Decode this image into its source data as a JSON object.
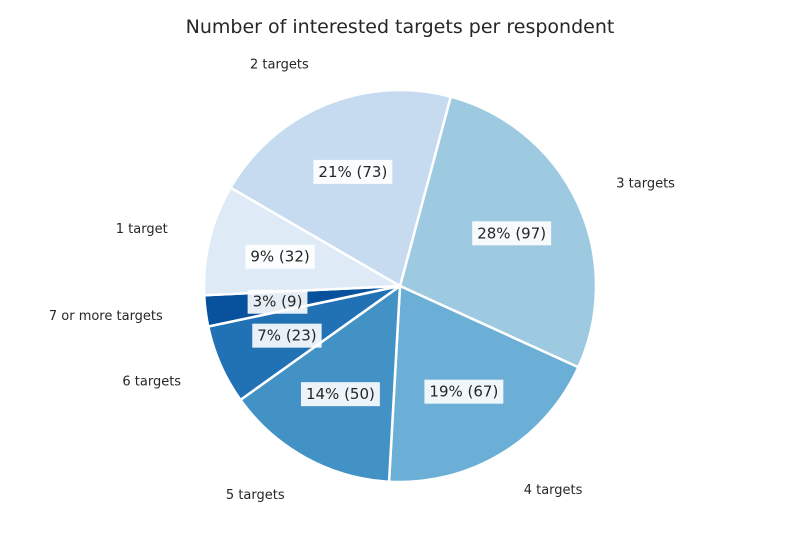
{
  "chart_data": {
    "type": "pie",
    "title": "Number of interested targets per respondent",
    "slices": [
      {
        "label": "3 targets",
        "count": 97,
        "percent_label": "28% (97)",
        "color": "#9ecae1"
      },
      {
        "label": "4 targets",
        "count": 67,
        "percent_label": "19% (67)",
        "color": "#6baed6"
      },
      {
        "label": "5 targets",
        "count": 50,
        "percent_label": "14% (50)",
        "color": "#4292c6"
      },
      {
        "label": "6 targets",
        "count": 23,
        "percent_label": "7% (23)",
        "color": "#2171b5"
      },
      {
        "label": "7 or more targets",
        "count": 9,
        "percent_label": "3% (9)",
        "color": "#08519c"
      },
      {
        "label": "1 target",
        "count": 32,
        "percent_label": "9% (32)",
        "color": "#deebf7"
      },
      {
        "label": "2 targets",
        "count": 73,
        "percent_label": "21% (73)",
        "color": "#c6dbef"
      }
    ],
    "start_angle_deg": 75,
    "direction": "clockwise",
    "legend": "none"
  }
}
